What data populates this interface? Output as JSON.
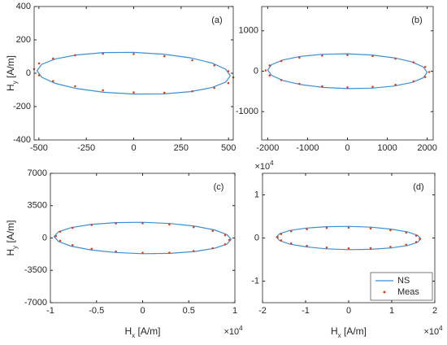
{
  "chart_data": [
    {
      "type": "line",
      "annotation": "(a)",
      "ylabel": [
        "H",
        "y",
        " [A/m]"
      ],
      "xlim": [
        -525,
        525
      ],
      "xticks": [
        -500,
        -250,
        0,
        250,
        500
      ],
      "ylim": [
        -400,
        400
      ],
      "yticks": [
        -400,
        -200,
        0,
        200,
        400
      ],
      "series": [
        {
          "mode": "line",
          "color": "#3d8ed3",
          "x": [
            510,
            485,
            413,
            300,
            158,
            0,
            -158,
            -300,
            -413,
            -485,
            -510,
            -485,
            -413,
            -300,
            -158,
            0,
            158,
            300,
            413,
            485,
            510
          ],
          "values": [
            -15,
            24,
            61,
            92,
            114,
            125,
            124,
            110,
            86,
            53,
            15,
            -24,
            -61,
            -92,
            -114,
            -125,
            -124,
            -110,
            -86,
            -53,
            -15
          ]
        },
        {
          "mode": "markers",
          "color": "#e2401b",
          "x": [
            525,
            499,
            425,
            309,
            162,
            0,
            -162,
            -309,
            -425,
            -499,
            -525,
            -499,
            -425,
            -309,
            -162,
            0,
            162,
            309,
            425,
            499
          ],
          "values": [
            -25,
            12,
            47,
            78,
            102,
            115,
            117,
            108,
            88,
            59,
            25,
            -12,
            -47,
            -78,
            -102,
            -115,
            -117,
            -108,
            -88,
            -59
          ]
        }
      ]
    },
    {
      "type": "line",
      "annotation": "(b)",
      "xlim": [
        -2150,
        2150
      ],
      "xticks": [
        -2000,
        -1000,
        0,
        1000,
        2000
      ],
      "ylim": [
        -1700,
        1600
      ],
      "yticks": [
        -1000,
        0,
        1000
      ],
      "series": [
        {
          "mode": "line",
          "color": "#3d8ed3",
          "x": [
            2000,
            1902,
            1618,
            1176,
            618,
            0,
            -618,
            -1176,
            -1618,
            -1902,
            -2000,
            -1902,
            -1618,
            -1176,
            -618,
            0,
            618,
            1176,
            1618,
            1902,
            2000
          ],
          "values": [
            -30,
            105,
            229,
            330,
            400,
            430,
            418,
            366,
            277,
            162,
            30,
            -105,
            -229,
            -330,
            -400,
            -430,
            -418,
            -366,
            -277,
            -162,
            -30
          ]
        },
        {
          "mode": "markers",
          "color": "#e2401b",
          "x": [
            2050,
            1950,
            1658,
            1205,
            633,
            0,
            -633,
            -1205,
            -1658,
            -1950,
            -2050,
            -1950,
            -1658,
            -1205,
            -633,
            0,
            633,
            1205,
            1658,
            1950
          ],
          "values": [
            -20,
            105,
            219,
            312,
            374,
            400,
            386,
            336,
            251,
            143,
            20,
            -105,
            -219,
            -312,
            -374,
            -400,
            -386,
            -336,
            -251,
            -143
          ]
        }
      ]
    },
    {
      "type": "line",
      "annotation": "(c)",
      "ylabel": [
        "H",
        "y",
        " [A/m]"
      ],
      "xlabel": [
        "H",
        "x",
        " [A/m]"
      ],
      "x_exponent": [
        "×10",
        "4"
      ],
      "xlim": [
        -1,
        1
      ],
      "xticks": [
        -1,
        -0.5,
        0,
        0.5,
        1
      ],
      "ylim": [
        -7000,
        7000
      ],
      "yticks": [
        -7000,
        -3500,
        0,
        3500,
        7000
      ],
      "series": [
        {
          "mode": "line",
          "color": "#3d8ed3",
          "x": [
            0.96,
            0.913,
            0.777,
            0.564,
            0.297,
            0,
            -0.297,
            -0.564,
            -0.777,
            -0.913,
            -0.96,
            -0.913,
            -0.777,
            -0.564,
            -0.297,
            0,
            0.297,
            0.564,
            0.777,
            0.913,
            0.96
          ],
          "values": [
            -150,
            382,
            879,
            1287,
            1571,
            1700,
            1663,
            1463,
            1121,
            668,
            150,
            -382,
            -879,
            -1287,
            -1571,
            -1700,
            -1663,
            -1463,
            -1121,
            -668,
            -150
          ]
        },
        {
          "mode": "markers",
          "color": "#e2401b",
          "x": [
            0.94,
            0.894,
            0.76,
            0.553,
            0.29,
            0,
            -0.29,
            -0.553,
            -0.76,
            -0.894,
            -0.94,
            -0.894,
            -0.76,
            -0.553,
            -0.29,
            0,
            0.29,
            0.553,
            0.76,
            0.894
          ],
          "values": [
            -200,
            304,
            779,
            1176,
            1460,
            1600,
            1584,
            1412,
            1103,
            684,
            200,
            -304,
            -779,
            -1176,
            -1460,
            -1600,
            -1584,
            -1412,
            -1103,
            -684
          ]
        }
      ]
    },
    {
      "type": "line",
      "annotation": "(d)",
      "xlabel": [
        "H",
        "x",
        " [A/m]"
      ],
      "x_exponent": [
        "×10",
        "4"
      ],
      "y_exponent": [
        "×10",
        "4"
      ],
      "legend": "lower right",
      "xlim": [
        -2,
        2
      ],
      "xticks": [
        -2,
        -1,
        0,
        1,
        2
      ],
      "ylim": [
        -1.5,
        1.5
      ],
      "yticks": [
        -1,
        0,
        1
      ],
      "series": [
        {
          "name": "NS",
          "mode": "line",
          "color": "#3d8ed3",
          "x": [
            1.68,
            1.598,
            1.359,
            0.988,
            0.519,
            0,
            -0.519,
            -0.988,
            -1.359,
            -1.598,
            -1.68,
            -1.598,
            -1.359,
            -0.988,
            -0.519,
            0,
            0.519,
            0.988,
            1.359,
            1.598,
            1.68
          ],
          "values": [
            -0.02,
            0.064,
            0.143,
            0.206,
            0.251,
            0.27,
            0.263,
            0.23,
            0.175,
            0.102,
            0.02,
            -0.064,
            -0.143,
            -0.206,
            -0.251,
            -0.27,
            -0.263,
            -0.23,
            -0.175,
            -0.102,
            -0.02
          ]
        },
        {
          "name": "Meas",
          "mode": "markers",
          "color": "#e2401b",
          "x": [
            1.65,
            1.569,
            1.335,
            0.97,
            0.51,
            0,
            -0.51,
            -0.97,
            -1.335,
            -1.569,
            -1.65,
            -1.569,
            -1.335,
            -0.97,
            -0.51,
            0,
            0.51,
            0.97,
            1.335,
            1.569
          ],
          "values": [
            -0.02,
            0.055,
            0.125,
            0.182,
            0.222,
            0.24,
            0.234,
            0.206,
            0.157,
            0.093,
            0.02,
            -0.055,
            -0.125,
            -0.182,
            -0.222,
            -0.24,
            -0.234,
            -0.206,
            -0.157,
            -0.093
          ]
        }
      ]
    }
  ]
}
